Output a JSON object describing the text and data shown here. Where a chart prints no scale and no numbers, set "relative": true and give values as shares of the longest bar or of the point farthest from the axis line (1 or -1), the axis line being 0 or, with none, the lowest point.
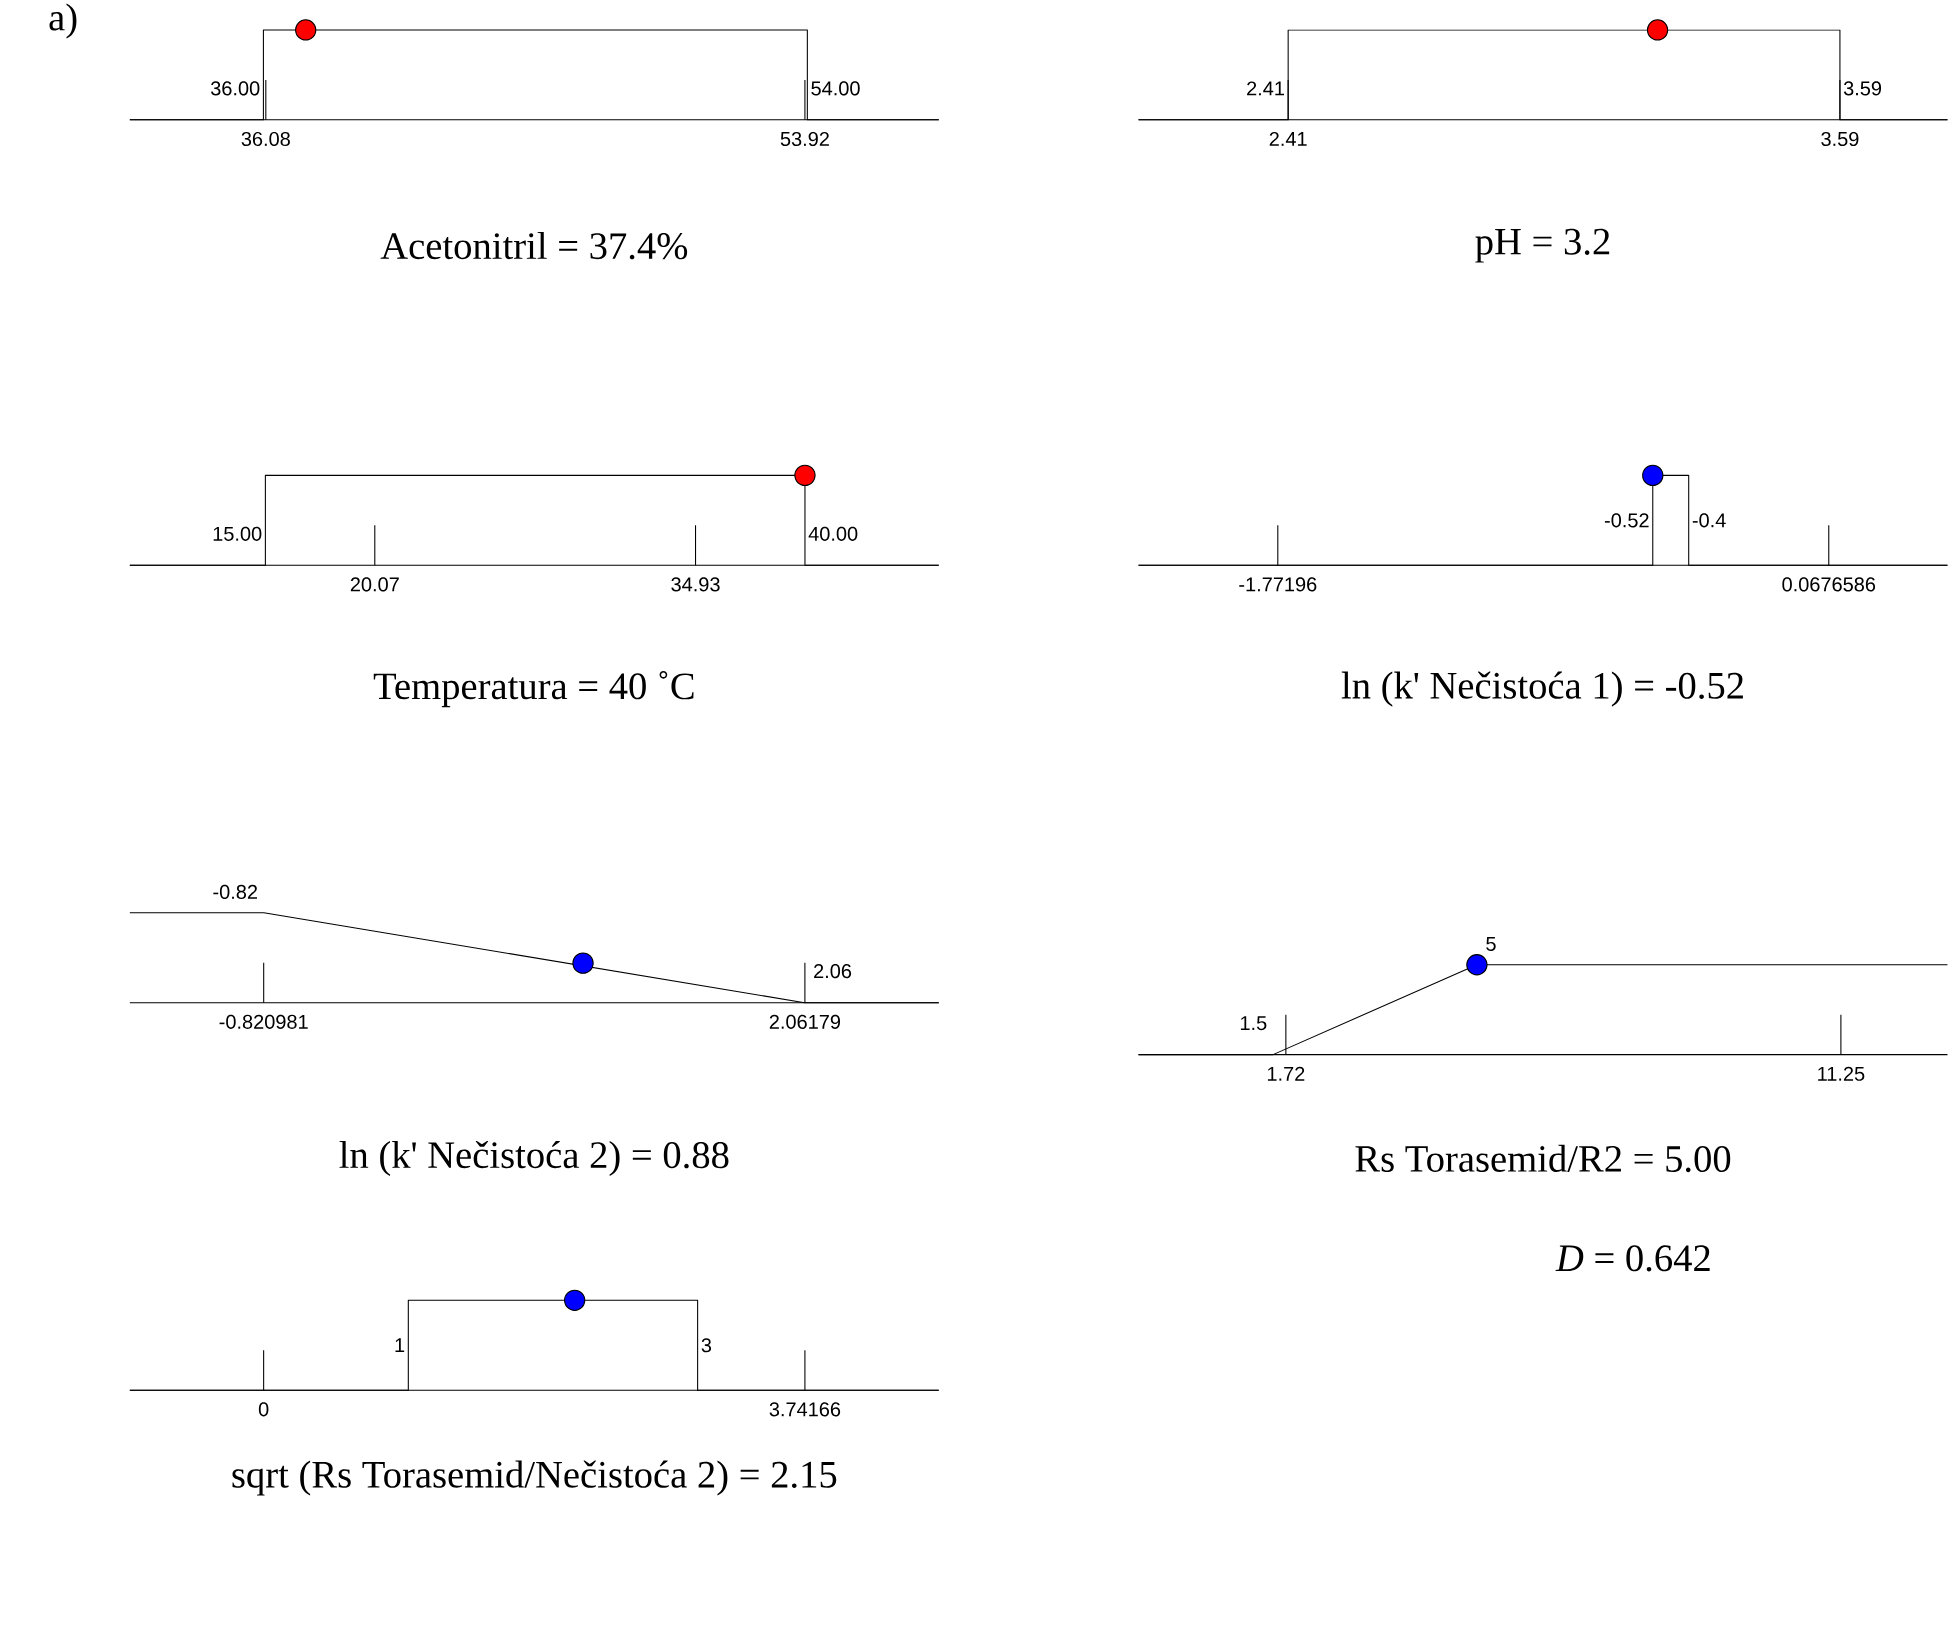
{
  "chart_data": [
    {
      "type": "line",
      "relative": true,
      "xlabel": "Acetonitril = 37.4%",
      "xlim": [
        31.58,
        58.35
      ],
      "xticks": [
        36.08,
        53.92
      ],
      "annotations": [
        "a)",
        {
          "text": "36.00",
          "x": 36,
          "y": 0.35
        },
        {
          "text": "54.00",
          "x": 54,
          "y": 0.35
        }
      ],
      "series": [
        {
          "x": [
            31.58,
            36,
            36,
            54,
            54,
            58.35
          ],
          "values": [
            0,
            0,
            1,
            1,
            0,
            0
          ],
          "color": "#000000"
        },
        {
          "type": "scatter",
          "x": [
            37.4
          ],
          "values": [
            1
          ],
          "color": "#ff0000"
        }
      ]
    },
    {
      "type": "line",
      "relative": true,
      "xlabel": "pH = 3.2",
      "xlim": [
        2.09,
        3.82
      ],
      "xticks": [
        2.41,
        3.59
      ],
      "annotations": [
        {
          "text": "2.41",
          "x": 2.41,
          "y": 0.35
        },
        {
          "text": "3.59",
          "x": 3.59,
          "y": 0.35
        }
      ],
      "series": [
        {
          "x": [
            2.09,
            2.41,
            2.41,
            3.59,
            3.59,
            3.82
          ],
          "values": [
            0,
            0,
            1,
            1,
            0,
            0
          ],
          "color": "#000000"
        },
        {
          "type": "scatter",
          "x": [
            3.2
          ],
          "values": [
            1
          ],
          "color": "#ff0000"
        }
      ]
    },
    {
      "type": "line",
      "relative": true,
      "xlabel": "Temperatura = 40 ˚C",
      "xlim": [
        8.72,
        46.2
      ],
      "xticks": [
        20.07,
        34.93
      ],
      "annotations": [
        {
          "text": "15.00",
          "x": 15,
          "y": 0.35
        },
        {
          "text": "40.00",
          "x": 40,
          "y": 0.35
        }
      ],
      "series": [
        {
          "x": [
            8.72,
            15,
            15,
            40,
            40,
            46.2
          ],
          "values": [
            0,
            0,
            1,
            1,
            0,
            0
          ],
          "color": "#000000"
        },
        {
          "type": "scatter",
          "x": [
            40
          ],
          "values": [
            1
          ],
          "color": "#ff0000"
        }
      ]
    },
    {
      "type": "line",
      "relative": true,
      "xlabel": "ln (k' Nečistoća 1) = -0.52",
      "xlim": [
        -2.237,
        0.464
      ],
      "xticks": [
        -1.77196,
        0.0676586
      ],
      "annotations": [
        {
          "text": "-0.52",
          "x": -0.52,
          "y": 0.5
        },
        {
          "text": "-0.4",
          "x": -0.4,
          "y": 0.5
        }
      ],
      "series": [
        {
          "x": [
            -2.237,
            -0.52,
            -0.52,
            -0.4,
            -0.4,
            0.464
          ],
          "values": [
            0,
            0,
            1,
            1,
            0,
            0
          ],
          "color": "#000000"
        },
        {
          "type": "scatter",
          "x": [
            -0.52
          ],
          "values": [
            1
          ],
          "color": "#0000ff"
        }
      ]
    },
    {
      "type": "line",
      "relative": true,
      "xlabel": "ln (k' Nečistoća 2) = 0.88",
      "xlim": [
        -1.534,
        2.775
      ],
      "xticks": [
        -0.820981,
        2.06179
      ],
      "annotations": [
        {
          "text": "-0.82",
          "x": -0.82,
          "y": 1
        },
        {
          "text": "2.06",
          "x": 2.06,
          "y": 0
        }
      ],
      "series": [
        {
          "x": [
            -1.534,
            -0.82,
            2.06,
            2.775
          ],
          "values": [
            1,
            1,
            0,
            0
          ],
          "color": "#000000"
        },
        {
          "type": "scatter",
          "x": [
            0.88
          ],
          "values": [
            0.44
          ],
          "color": "#0000ff"
        }
      ]
    },
    {
      "type": "line",
      "relative": true,
      "xlabel": "Rs Torasemid/R2 = 5.00",
      "xlim": [
        -0.81,
        13.08
      ],
      "xticks": [
        1.72,
        11.25
      ],
      "annotations": [
        {
          "text": "1.5",
          "x": 1.5,
          "y": 0
        },
        {
          "text": "5",
          "x": 5,
          "y": 1
        }
      ],
      "series": [
        {
          "x": [
            -0.81,
            1.5,
            5,
            13.08
          ],
          "values": [
            0,
            0,
            1,
            1
          ],
          "color": "#000000"
        },
        {
          "type": "scatter",
          "x": [
            5
          ],
          "values": [
            1
          ],
          "color": "#0000ff"
        }
      ]
    },
    {
      "type": "line",
      "relative": true,
      "xlabel": "sqrt (Rs Torasemid/Nečistoća 2) = 2.15",
      "xlim": [
        -0.925,
        4.667
      ],
      "xticks": [
        0,
        3.74166
      ],
      "annotations": [
        {
          "text": "1",
          "x": 1,
          "y": 0.5
        },
        {
          "text": "3",
          "x": 3,
          "y": 0.5
        }
      ],
      "series": [
        {
          "x": [
            -0.925,
            1,
            1,
            3,
            3,
            4.667
          ],
          "values": [
            0,
            0,
            1,
            1,
            0,
            0
          ],
          "color": "#000000"
        },
        {
          "type": "scatter",
          "x": [
            2.15
          ],
          "values": [
            1
          ],
          "color": "#0000ff"
        }
      ]
    },
    {
      "type": "other",
      "annotations": [
        "*D* = 0.642"
      ]
    }
  ]
}
